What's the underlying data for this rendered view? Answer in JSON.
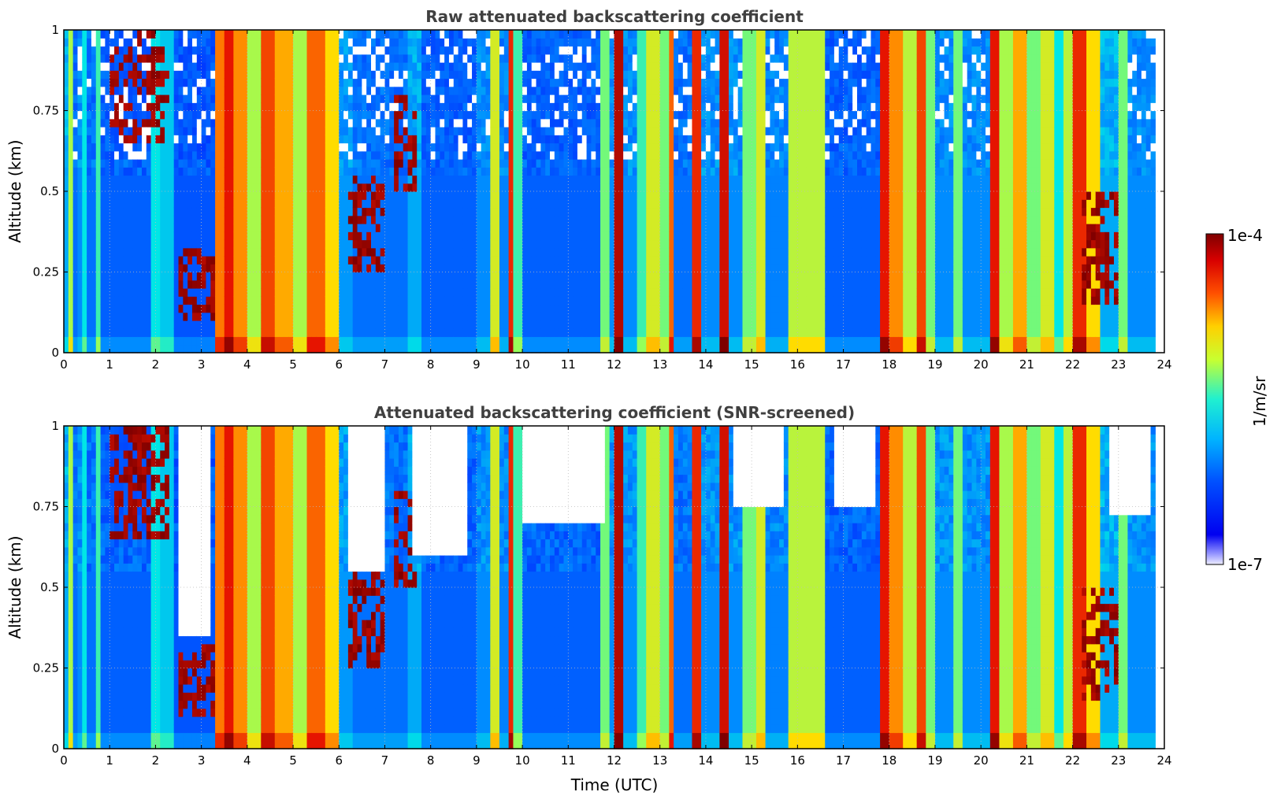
{
  "chart_data": [
    {
      "type": "heatmap",
      "title": "Raw attenuated backscattering coefficient",
      "xlabel": "",
      "ylabel": "Altitude (km)",
      "xlim": [
        0,
        24
      ],
      "ylim": [
        0,
        1
      ],
      "xticks": [
        "0",
        "1",
        "2",
        "3",
        "4",
        "5",
        "6",
        "7",
        "8",
        "9",
        "10",
        "11",
        "12",
        "13",
        "14",
        "15",
        "16",
        "17",
        "18",
        "19",
        "20",
        "21",
        "22",
        "23",
        "24"
      ],
      "yticks": [
        "0",
        "0.25",
        "0.5",
        "0.75",
        "1"
      ],
      "grid": true,
      "data_extent_x": [
        0,
        23.8
      ],
      "column_profiles": [
        [
          0.0,
          0.1,
          0.35
        ],
        [
          0.1,
          0.18,
          0.6
        ],
        [
          0.18,
          0.3,
          0.25
        ],
        [
          0.3,
          0.45,
          0.3
        ],
        [
          0.45,
          0.55,
          0.45
        ],
        [
          0.55,
          0.7,
          0.25
        ],
        [
          0.7,
          0.8,
          0.5
        ],
        [
          0.8,
          1.9,
          0.22
        ],
        [
          1.9,
          2.1,
          0.45
        ],
        [
          2.1,
          2.4,
          0.4
        ],
        [
          2.4,
          3.3,
          0.2
        ],
        [
          3.3,
          3.45,
          0.8
        ],
        [
          3.45,
          3.7,
          0.9
        ],
        [
          3.7,
          4.0,
          0.78
        ],
        [
          4.0,
          4.3,
          0.6
        ],
        [
          4.3,
          4.6,
          0.85
        ],
        [
          4.6,
          5.0,
          0.75
        ],
        [
          5.0,
          5.3,
          0.6
        ],
        [
          5.3,
          5.7,
          0.82
        ],
        [
          5.7,
          6.0,
          0.7
        ],
        [
          6.0,
          6.3,
          0.32
        ],
        [
          6.3,
          7.5,
          0.25
        ],
        [
          7.5,
          7.8,
          0.35
        ],
        [
          7.8,
          9.0,
          0.22
        ],
        [
          9.0,
          9.3,
          0.3
        ],
        [
          9.3,
          9.5,
          0.65
        ],
        [
          9.5,
          9.7,
          0.28
        ],
        [
          9.7,
          9.85,
          0.88
        ],
        [
          9.85,
          10.0,
          0.5
        ],
        [
          10.0,
          11.7,
          0.22
        ],
        [
          11.7,
          11.9,
          0.55
        ],
        [
          11.9,
          12.0,
          0.3
        ],
        [
          12.0,
          12.2,
          0.95
        ],
        [
          12.2,
          12.5,
          0.3
        ],
        [
          12.5,
          12.7,
          0.5
        ],
        [
          12.7,
          13.0,
          0.65
        ],
        [
          13.0,
          13.2,
          0.55
        ],
        [
          13.2,
          13.35,
          0.82
        ],
        [
          13.35,
          13.7,
          0.25
        ],
        [
          13.7,
          13.9,
          0.88
        ],
        [
          13.9,
          14.3,
          0.3
        ],
        [
          14.3,
          14.55,
          0.92
        ],
        [
          14.55,
          14.8,
          0.3
        ],
        [
          14.8,
          15.1,
          0.55
        ],
        [
          15.1,
          15.3,
          0.65
        ],
        [
          15.3,
          15.8,
          0.28
        ],
        [
          15.8,
          16.6,
          0.62
        ],
        [
          16.6,
          17.8,
          0.22
        ],
        [
          17.8,
          18.0,
          0.9
        ],
        [
          18.0,
          18.3,
          0.78
        ],
        [
          18.3,
          18.6,
          0.62
        ],
        [
          18.6,
          18.8,
          0.85
        ],
        [
          18.8,
          19.0,
          0.55
        ],
        [
          19.0,
          19.4,
          0.3
        ],
        [
          19.4,
          19.6,
          0.55
        ],
        [
          19.6,
          20.2,
          0.3
        ],
        [
          20.2,
          20.45,
          0.9
        ],
        [
          20.45,
          20.7,
          0.6
        ],
        [
          20.7,
          21.0,
          0.75
        ],
        [
          21.0,
          21.3,
          0.55
        ],
        [
          21.3,
          21.6,
          0.65
        ],
        [
          21.6,
          21.8,
          0.45
        ],
        [
          21.8,
          22.0,
          0.62
        ],
        [
          22.0,
          22.3,
          0.88
        ],
        [
          22.3,
          22.6,
          0.7
        ],
        [
          22.6,
          23.0,
          0.35
        ],
        [
          23.0,
          23.2,
          0.55
        ],
        [
          23.2,
          23.8,
          0.3
        ]
      ],
      "cloud_features": [
        {
          "x": [
            2.5,
            3.3
          ],
          "y": [
            0.1,
            0.32
          ]
        },
        {
          "x": [
            1.0,
            2.3
          ],
          "y": [
            0.65,
            1.0
          ]
        },
        {
          "x": [
            6.2,
            7.0
          ],
          "y": [
            0.25,
            0.55
          ]
        },
        {
          "x": [
            7.2,
            7.7
          ],
          "y": [
            0.5,
            0.8
          ]
        },
        {
          "x": [
            22.2,
            23.0
          ],
          "y": [
            0.15,
            0.5
          ]
        }
      ]
    },
    {
      "type": "heatmap",
      "title": "Attenuated backscattering coefficient (SNR-screened)",
      "xlabel": "Time (UTC)",
      "ylabel": "Altitude (km)",
      "xlim": [
        0,
        24
      ],
      "ylim": [
        0,
        1
      ],
      "xticks": [
        "0",
        "1",
        "2",
        "3",
        "4",
        "5",
        "6",
        "7",
        "8",
        "9",
        "10",
        "11",
        "12",
        "13",
        "14",
        "15",
        "16",
        "17",
        "18",
        "19",
        "20",
        "21",
        "22",
        "23",
        "24"
      ],
      "yticks": [
        "0",
        "0.25",
        "0.5",
        "0.75",
        "1"
      ],
      "grid": true,
      "data_extent_x": [
        0,
        23.8
      ],
      "screened_regions": [
        {
          "x": [
            2.5,
            3.2
          ],
          "y": [
            0.35,
            1.0
          ]
        },
        {
          "x": [
            6.2,
            7.0
          ],
          "y": [
            0.55,
            1.0
          ]
        },
        {
          "x": [
            7.6,
            8.8
          ],
          "y": [
            0.6,
            1.0
          ]
        },
        {
          "x": [
            10.0,
            11.8
          ],
          "y": [
            0.7,
            1.0
          ]
        },
        {
          "x": [
            14.6,
            15.7
          ],
          "y": [
            0.75,
            1.0
          ]
        },
        {
          "x": [
            16.8,
            17.7
          ],
          "y": [
            0.75,
            1.0
          ]
        },
        {
          "x": [
            22.8,
            23.7
          ],
          "y": [
            0.72,
            1.0
          ]
        }
      ]
    }
  ],
  "colorbar": {
    "label": "1/m/sr",
    "max_label": "1e-4",
    "min_label": "1e-7",
    "range": [
      1e-07,
      0.0001
    ],
    "scale": "log",
    "colormap": "jet"
  }
}
